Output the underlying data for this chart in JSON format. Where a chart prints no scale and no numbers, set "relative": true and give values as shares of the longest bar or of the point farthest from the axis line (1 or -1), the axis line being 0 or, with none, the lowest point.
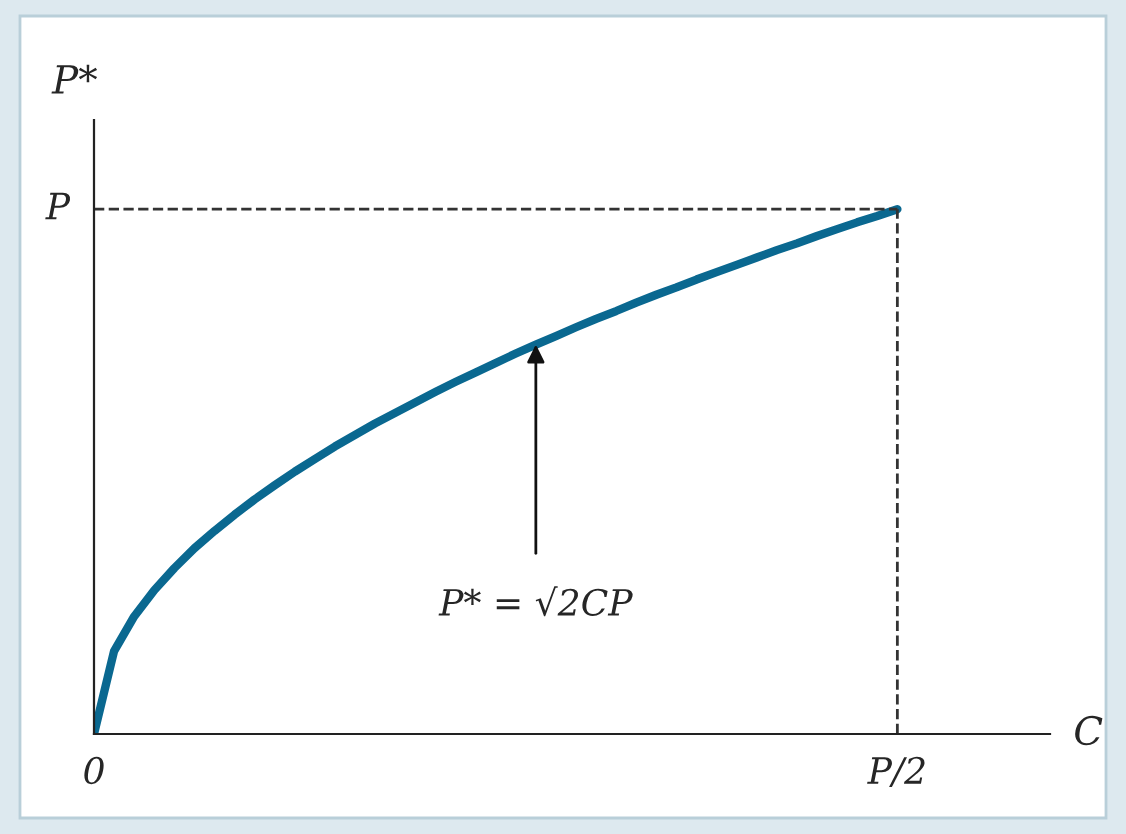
{
  "chart_data": {
    "type": "line",
    "relative": true,
    "xlabel": "C",
    "ylabel": "P*",
    "categories": [
      "0",
      null,
      null,
      null,
      null,
      null,
      null,
      null,
      null,
      null,
      null,
      null,
      null,
      null,
      null,
      null,
      null,
      null,
      null,
      null,
      null,
      null,
      null,
      null,
      null,
      null,
      null,
      null,
      null,
      null,
      null,
      null,
      null,
      null,
      null,
      null,
      null,
      null,
      null,
      null,
      "P/2"
    ],
    "series": [
      {
        "color": "#0a6890",
        "values": [
          0,
          0.158,
          0.224,
          0.274,
          0.316,
          0.354,
          0.387,
          0.418,
          0.447,
          0.474,
          0.5,
          0.524,
          0.548,
          0.57,
          0.592,
          0.612,
          0.632,
          0.652,
          0.671,
          0.689,
          0.707,
          0.725,
          0.742,
          0.758,
          0.775,
          0.791,
          0.806,
          0.822,
          0.837,
          0.851,
          0.866,
          0.88,
          0.894,
          0.908,
          0.922,
          0.935,
          0.949,
          0.962,
          0.975,
          0.987,
          1
        ]
      }
    ],
    "ref_lines": [
      {
        "axis": "y",
        "value": 1,
        "label": "P",
        "line_style": "dashed"
      },
      {
        "axis": "x",
        "value": "P/2",
        "line_style": "dashed"
      }
    ],
    "annotations": [
      {
        "text": "P* = √2CP",
        "y": 0.742
      }
    ]
  }
}
